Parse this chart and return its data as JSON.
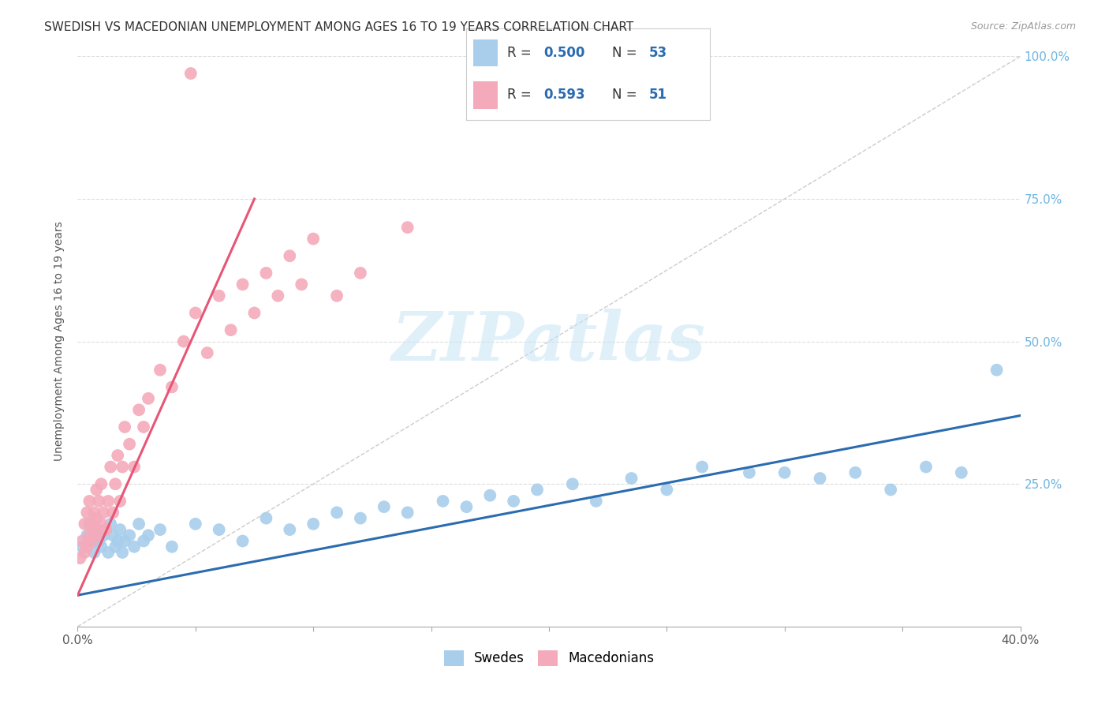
{
  "title": "SWEDISH VS MACEDONIAN UNEMPLOYMENT AMONG AGES 16 TO 19 YEARS CORRELATION CHART",
  "source": "Source: ZipAtlas.com",
  "ylabel": "Unemployment Among Ages 16 to 19 years",
  "xlim": [
    0.0,
    0.4
  ],
  "ylim": [
    0.0,
    1.0
  ],
  "xticks": [
    0.0,
    0.05,
    0.1,
    0.15,
    0.2,
    0.25,
    0.3,
    0.35,
    0.4
  ],
  "yticks": [
    0.0,
    0.25,
    0.5,
    0.75,
    1.0
  ],
  "right_yticklabels": [
    "",
    "25.0%",
    "50.0%",
    "75.0%",
    "100.0%"
  ],
  "R_swedes": 0.5,
  "N_swedes": 53,
  "R_macedonians": 0.593,
  "N_macedonians": 51,
  "legend_swedes": "Swedes",
  "legend_macedonians": "Macedonians",
  "color_swedes": "#A8CEEB",
  "color_macedonians": "#F4AABB",
  "color_line_swedes": "#2B6CB0",
  "color_line_macedonians": "#E85575",
  "color_diagonal": "#CCCCCC",
  "background_color": "#FFFFFF",
  "grid_color": "#DDDDDD",
  "title_fontsize": 11,
  "axis_label_fontsize": 10,
  "tick_fontsize": 11,
  "watermark_text": "ZIPatlas",
  "swedes_x": [
    0.002,
    0.004,
    0.005,
    0.006,
    0.007,
    0.008,
    0.009,
    0.01,
    0.011,
    0.012,
    0.013,
    0.014,
    0.015,
    0.016,
    0.017,
    0.018,
    0.019,
    0.02,
    0.022,
    0.024,
    0.026,
    0.028,
    0.03,
    0.035,
    0.04,
    0.05,
    0.06,
    0.07,
    0.08,
    0.09,
    0.1,
    0.11,
    0.12,
    0.13,
    0.14,
    0.155,
    0.165,
    0.175,
    0.185,
    0.195,
    0.21,
    0.22,
    0.235,
    0.25,
    0.265,
    0.285,
    0.3,
    0.315,
    0.33,
    0.345,
    0.36,
    0.375,
    0.39
  ],
  "swedes_y": [
    0.14,
    0.16,
    0.18,
    0.15,
    0.13,
    0.17,
    0.15,
    0.14,
    0.16,
    0.17,
    0.13,
    0.18,
    0.16,
    0.14,
    0.15,
    0.17,
    0.13,
    0.15,
    0.16,
    0.14,
    0.18,
    0.15,
    0.16,
    0.17,
    0.14,
    0.18,
    0.17,
    0.15,
    0.19,
    0.17,
    0.18,
    0.2,
    0.19,
    0.21,
    0.2,
    0.22,
    0.21,
    0.23,
    0.22,
    0.24,
    0.25,
    0.22,
    0.26,
    0.24,
    0.28,
    0.27,
    0.27,
    0.26,
    0.27,
    0.24,
    0.28,
    0.27,
    0.45
  ],
  "macedonians_x": [
    0.001,
    0.002,
    0.003,
    0.003,
    0.004,
    0.004,
    0.005,
    0.005,
    0.006,
    0.006,
    0.007,
    0.007,
    0.008,
    0.008,
    0.009,
    0.009,
    0.01,
    0.01,
    0.011,
    0.012,
    0.013,
    0.014,
    0.015,
    0.016,
    0.017,
    0.018,
    0.019,
    0.02,
    0.022,
    0.024,
    0.026,
    0.028,
    0.03,
    0.035,
    0.04,
    0.045,
    0.05,
    0.055,
    0.06,
    0.065,
    0.07,
    0.075,
    0.08,
    0.085,
    0.09,
    0.095,
    0.1,
    0.11,
    0.12,
    0.14,
    0.048
  ],
  "macedonians_y": [
    0.12,
    0.15,
    0.13,
    0.18,
    0.14,
    0.2,
    0.16,
    0.22,
    0.18,
    0.15,
    0.2,
    0.17,
    0.24,
    0.19,
    0.16,
    0.22,
    0.18,
    0.25,
    0.2,
    0.17,
    0.22,
    0.28,
    0.2,
    0.25,
    0.3,
    0.22,
    0.28,
    0.35,
    0.32,
    0.28,
    0.38,
    0.35,
    0.4,
    0.45,
    0.42,
    0.5,
    0.55,
    0.48,
    0.58,
    0.52,
    0.6,
    0.55,
    0.62,
    0.58,
    0.65,
    0.6,
    0.68,
    0.58,
    0.62,
    0.7,
    0.97
  ],
  "blue_line_x": [
    0.0,
    0.4
  ],
  "blue_line_y": [
    0.055,
    0.37
  ],
  "pink_line_x": [
    0.0,
    0.075
  ],
  "pink_line_y": [
    0.055,
    0.75
  ]
}
